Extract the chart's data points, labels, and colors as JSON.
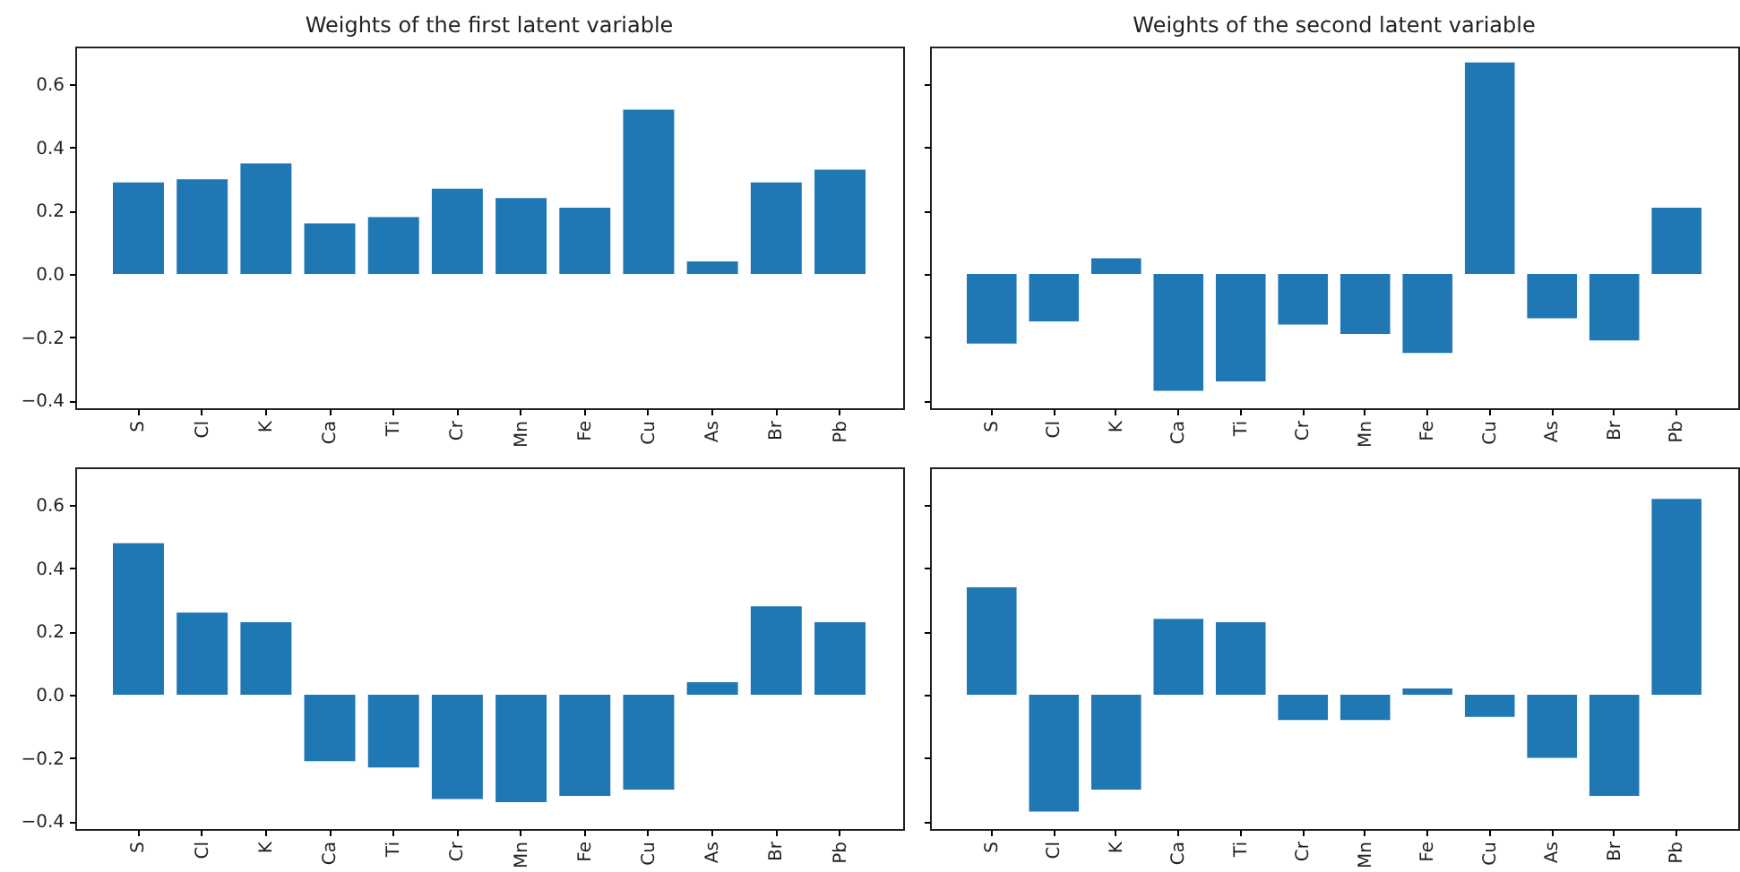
{
  "chart_data": [
    {
      "type": "bar",
      "title": "Weights of the first latent variable",
      "categories": [
        "S",
        "Cl",
        "K",
        "Ca",
        "Ti",
        "Cr",
        "Mn",
        "Fe",
        "Cu",
        "As",
        "Br",
        "Pb"
      ],
      "values": [
        0.29,
        0.3,
        0.35,
        0.16,
        0.18,
        0.27,
        0.24,
        0.21,
        0.52,
        0.04,
        0.29,
        0.33
      ],
      "color": "#1f77b4",
      "ylim": [
        -0.425,
        0.72
      ],
      "yticks": [
        {
          "value": -0.4,
          "label": "−0.4"
        },
        {
          "value": -0.2,
          "label": "−0.2"
        },
        {
          "value": 0,
          "label": "0.0"
        },
        0.2,
        0.4,
        0.6
      ]
    },
    {
      "type": "bar",
      "title": "Weights of the second latent variable",
      "categories": [
        "S",
        "Cl",
        "K",
        "Ca",
        "Ti",
        "Cr",
        "Mn",
        "Fe",
        "Cu",
        "As",
        "Br",
        "Pb"
      ],
      "values": [
        -0.22,
        -0.15,
        0.05,
        -0.37,
        -0.34,
        -0.16,
        -0.19,
        -0.25,
        0.67,
        -0.14,
        -0.21,
        0.21
      ],
      "color": "#1f77b4",
      "ylim": [
        -0.425,
        0.72
      ],
      "yticks": [
        -0.4,
        -0.2,
        0,
        0.2,
        0.4,
        0.6
      ],
      "tick_labels": "x"
    },
    {
      "type": "bar",
      "categories": [
        "S",
        "Cl",
        "K",
        "Ca",
        "Ti",
        "Cr",
        "Mn",
        "Fe",
        "Cu",
        "As",
        "Br",
        "Pb"
      ],
      "values": [
        0.48,
        0.26,
        0.23,
        -0.21,
        -0.23,
        -0.33,
        -0.34,
        -0.32,
        -0.3,
        0.04,
        0.28,
        0.23
      ],
      "color": "#1f77b4",
      "ylim": [
        -0.425,
        0.72
      ],
      "yticks": [
        {
          "value": -0.4,
          "label": "−0.4"
        },
        {
          "value": -0.2,
          "label": "−0.2"
        },
        {
          "value": 0,
          "label": "0.0"
        },
        0.2,
        0.4,
        0.6
      ]
    },
    {
      "type": "bar",
      "categories": [
        "S",
        "Cl",
        "K",
        "Ca",
        "Ti",
        "Cr",
        "Mn",
        "Fe",
        "Cu",
        "As",
        "Br",
        "Pb"
      ],
      "values": [
        0.34,
        -0.37,
        -0.3,
        0.24,
        0.23,
        -0.08,
        -0.08,
        0.02,
        -0.07,
        -0.2,
        -0.32,
        0.62
      ],
      "color": "#1f77b4",
      "ylim": [
        -0.425,
        0.72
      ],
      "yticks": [
        -0.4,
        -0.2,
        0,
        0.2,
        0.4,
        0.6
      ],
      "tick_labels": "x"
    }
  ]
}
